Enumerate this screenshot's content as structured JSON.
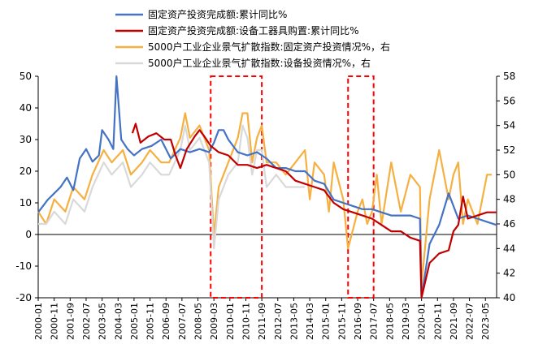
{
  "chart_data": {
    "type": "line",
    "x_ticks": [
      "2000-01",
      "2000-11",
      "2001-09",
      "2002-07",
      "2003-05",
      "2004-03",
      "2005-01",
      "2005-11",
      "2006-09",
      "2007-07",
      "2008-05",
      "2009-03",
      "2010-01",
      "2010-11",
      "2011-09",
      "2012-07",
      "2013-05",
      "2014-03",
      "2015-01",
      "2015-11",
      "2016-09",
      "2017-07",
      "2018-05",
      "2019-03",
      "2020-01",
      "2020-11",
      "2021-09",
      "2022-07",
      "2023-05"
    ],
    "y_left": {
      "ticks": [
        "50",
        "40",
        "30",
        "20",
        "10",
        "0",
        "-10",
        "-20"
      ],
      "min": -20,
      "max": 50
    },
    "y_right": {
      "ticks": [
        "58",
        "56",
        "54",
        "52",
        "50",
        "48",
        "46",
        "44",
        "42",
        "40"
      ],
      "min": 40,
      "max": 58
    },
    "legend_position": "top",
    "grid": false,
    "zero_line": true,
    "highlight_boxes": [
      {
        "start": "2009-01",
        "end": "2011-09",
        "color": "#ff0000",
        "style": "dashed"
      },
      {
        "start": "2016-03",
        "end": "2017-07",
        "color": "#ff0000",
        "style": "dashed"
      }
    ],
    "series": [
      {
        "name": "固定资产投资完成额:累计同比%",
        "axis": "left",
        "color": "#4472c4",
        "points": [
          [
            "2000-01",
            7
          ],
          [
            "2000-07",
            11
          ],
          [
            "2000-11",
            13
          ],
          [
            "2001-03",
            15
          ],
          [
            "2001-07",
            18
          ],
          [
            "2001-11",
            14
          ],
          [
            "2002-03",
            24
          ],
          [
            "2002-07",
            27
          ],
          [
            "2002-11",
            23
          ],
          [
            "2003-03",
            25
          ],
          [
            "2003-05",
            33
          ],
          [
            "2003-09",
            30
          ],
          [
            "2003-12",
            27
          ],
          [
            "2004-02",
            50
          ],
          [
            "2004-05",
            30
          ],
          [
            "2004-09",
            27
          ],
          [
            "2005-01",
            25
          ],
          [
            "2005-06",
            27
          ],
          [
            "2005-12",
            28
          ],
          [
            "2006-06",
            30
          ],
          [
            "2006-12",
            24
          ],
          [
            "2007-06",
            27
          ],
          [
            "2007-12",
            26
          ],
          [
            "2008-06",
            27
          ],
          [
            "2008-12",
            26
          ],
          [
            "2009-03",
            29
          ],
          [
            "2009-06",
            33
          ],
          [
            "2009-09",
            33
          ],
          [
            "2009-12",
            30
          ],
          [
            "2010-06",
            26
          ],
          [
            "2010-12",
            25
          ],
          [
            "2011-06",
            26
          ],
          [
            "2011-09",
            25
          ],
          [
            "2011-12",
            24
          ],
          [
            "2012-06",
            21
          ],
          [
            "2012-12",
            21
          ],
          [
            "2013-06",
            20
          ],
          [
            "2013-12",
            20
          ],
          [
            "2014-06",
            17
          ],
          [
            "2014-12",
            16
          ],
          [
            "2015-06",
            11
          ],
          [
            "2015-12",
            10
          ],
          [
            "2016-06",
            9
          ],
          [
            "2016-12",
            8
          ],
          [
            "2017-06",
            8
          ],
          [
            "2017-12",
            7
          ],
          [
            "2018-06",
            6
          ],
          [
            "2018-12",
            6
          ],
          [
            "2019-06",
            6
          ],
          [
            "2019-12",
            5
          ],
          [
            "2020-01",
            -20
          ],
          [
            "2020-06",
            -3
          ],
          [
            "2020-12",
            3
          ],
          [
            "2021-06",
            13
          ],
          [
            "2021-12",
            5
          ],
          [
            "2022-06",
            6
          ],
          [
            "2022-12",
            5
          ],
          [
            "2023-06",
            4
          ],
          [
            "2023-12",
            3
          ]
        ]
      },
      {
        "name": "固定资产投资完成额:设备工器具购置:累计同比%",
        "axis": "left",
        "color": "#c00000",
        "points": [
          [
            "2004-12",
            32
          ],
          [
            "2005-02",
            35
          ],
          [
            "2005-05",
            29
          ],
          [
            "2005-10",
            31
          ],
          [
            "2006-03",
            32
          ],
          [
            "2006-08",
            30
          ],
          [
            "2006-12",
            30
          ],
          [
            "2007-03",
            25
          ],
          [
            "2007-06",
            21
          ],
          [
            "2007-10",
            27
          ],
          [
            "2008-03",
            31
          ],
          [
            "2008-06",
            33
          ],
          [
            "2008-09",
            31
          ],
          [
            "2009-01",
            28
          ],
          [
            "2009-06",
            26
          ],
          [
            "2009-12",
            25
          ],
          [
            "2010-06",
            22
          ],
          [
            "2010-12",
            22
          ],
          [
            "2011-06",
            21
          ],
          [
            "2011-12",
            22
          ],
          [
            "2012-06",
            21
          ],
          [
            "2012-12",
            20
          ],
          [
            "2013-06",
            17
          ],
          [
            "2013-12",
            16
          ],
          [
            "2014-06",
            15
          ],
          [
            "2014-12",
            14
          ],
          [
            "2015-06",
            10
          ],
          [
            "2015-12",
            8
          ],
          [
            "2016-06",
            7
          ],
          [
            "2016-12",
            6
          ],
          [
            "2017-06",
            5
          ],
          [
            "2017-12",
            3
          ],
          [
            "2018-06",
            1
          ],
          [
            "2018-12",
            1
          ],
          [
            "2019-06",
            -1
          ],
          [
            "2019-12",
            -2
          ],
          [
            "2020-01",
            -20
          ],
          [
            "2020-06",
            -9
          ],
          [
            "2020-12",
            -6
          ],
          [
            "2021-06",
            -5
          ],
          [
            "2021-09",
            1
          ],
          [
            "2021-12",
            3
          ],
          [
            "2022-03",
            12
          ],
          [
            "2022-06",
            5
          ],
          [
            "2022-12",
            6
          ],
          [
            "2023-06",
            7
          ],
          [
            "2023-12",
            7
          ]
        ]
      },
      {
        "name": "5000户工业企业景气扩散指数:固定资产投资情况%，右",
        "axis": "right",
        "color": "#f5b041",
        "points": [
          [
            "2000-01",
            47
          ],
          [
            "2000-06",
            46
          ],
          [
            "2000-11",
            48
          ],
          [
            "2001-06",
            47
          ],
          [
            "2001-11",
            49
          ],
          [
            "2002-06",
            48
          ],
          [
            "2002-11",
            50
          ],
          [
            "2003-06",
            52
          ],
          [
            "2003-11",
            51
          ],
          [
            "2004-06",
            52
          ],
          [
            "2004-11",
            50
          ],
          [
            "2005-06",
            51
          ],
          [
            "2005-11",
            52
          ],
          [
            "2006-06",
            51
          ],
          [
            "2006-11",
            51
          ],
          [
            "2007-06",
            53
          ],
          [
            "2007-09",
            55
          ],
          [
            "2007-12",
            53
          ],
          [
            "2008-06",
            54
          ],
          [
            "2008-12",
            52
          ],
          [
            "2009-03",
            45
          ],
          [
            "2009-06",
            49
          ],
          [
            "2009-12",
            51
          ],
          [
            "2010-06",
            53
          ],
          [
            "2010-09",
            55
          ],
          [
            "2010-12",
            55
          ],
          [
            "2011-03",
            51
          ],
          [
            "2011-06",
            53
          ],
          [
            "2011-09",
            54
          ],
          [
            "2011-12",
            51
          ],
          [
            "2012-06",
            51
          ],
          [
            "2012-12",
            50
          ],
          [
            "2013-06",
            51
          ],
          [
            "2013-12",
            52
          ],
          [
            "2014-03",
            48
          ],
          [
            "2014-06",
            51
          ],
          [
            "2014-12",
            50
          ],
          [
            "2015-03",
            47
          ],
          [
            "2015-06",
            51
          ],
          [
            "2015-12",
            48
          ],
          [
            "2016-03",
            44
          ],
          [
            "2016-09",
            47
          ],
          [
            "2016-12",
            48
          ],
          [
            "2017-03",
            46
          ],
          [
            "2017-06",
            47
          ],
          [
            "2017-09",
            50
          ],
          [
            "2017-12",
            46
          ],
          [
            "2018-06",
            51
          ],
          [
            "2018-12",
            47
          ],
          [
            "2019-06",
            50
          ],
          [
            "2019-12",
            49
          ],
          [
            "2020-01",
            41
          ],
          [
            "2020-06",
            48
          ],
          [
            "2020-12",
            52
          ],
          [
            "2021-06",
            48
          ],
          [
            "2021-09",
            50
          ],
          [
            "2021-12",
            51
          ],
          [
            "2022-03",
            46
          ],
          [
            "2022-06",
            48
          ],
          [
            "2022-12",
            46
          ],
          [
            "2023-06",
            50
          ],
          [
            "2023-09",
            50
          ]
        ]
      },
      {
        "name": "5000户工业企业景气扩散指数:设备投资情况%，右",
        "axis": "right",
        "color": "#d9d9d9",
        "points": [
          [
            "2000-01",
            46
          ],
          [
            "2000-06",
            46
          ],
          [
            "2000-11",
            47
          ],
          [
            "2001-06",
            46
          ],
          [
            "2001-11",
            48
          ],
          [
            "2002-06",
            47
          ],
          [
            "2002-11",
            49
          ],
          [
            "2003-06",
            51
          ],
          [
            "2003-11",
            50
          ],
          [
            "2004-06",
            51
          ],
          [
            "2004-11",
            49
          ],
          [
            "2005-06",
            50
          ],
          [
            "2005-11",
            51
          ],
          [
            "2006-06",
            50
          ],
          [
            "2006-11",
            50
          ],
          [
            "2007-06",
            52
          ],
          [
            "2007-09",
            54
          ],
          [
            "2007-12",
            52
          ],
          [
            "2008-06",
            53
          ],
          [
            "2008-12",
            51
          ],
          [
            "2009-03",
            44
          ],
          [
            "2009-06",
            48
          ],
          [
            "2009-12",
            50
          ],
          [
            "2010-06",
            51
          ],
          [
            "2010-09",
            54
          ],
          [
            "2010-12",
            53
          ],
          [
            "2011-03",
            50
          ],
          [
            "2011-06",
            52
          ],
          [
            "2011-09",
            52
          ],
          [
            "2011-12",
            49
          ],
          [
            "2012-06",
            50
          ],
          [
            "2012-12",
            49
          ],
          [
            "2013-06",
            49
          ],
          [
            "2013-12",
            49
          ]
        ]
      }
    ]
  }
}
